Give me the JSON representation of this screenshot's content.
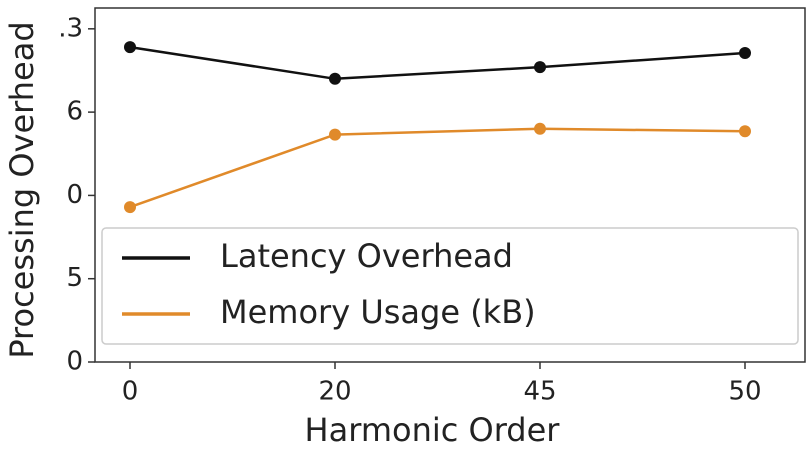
{
  "chart_data": {
    "type": "line",
    "xlabel": "Harmonic Order",
    "ylabel": "Processing Overhead",
    "categories": [
      "0",
      "20",
      "45",
      "50"
    ],
    "series": [
      {
        "name": "Latency Overhead",
        "color": "#111111",
        "values": [
          3.78,
          3.4,
          3.54,
          3.71
        ]
      },
      {
        "name": "Memory Usage (kB)",
        "color": "#e08a2a",
        "values": [
          1.86,
          2.73,
          2.8,
          2.77
        ]
      }
    ],
    "ylim": [
      0,
      4.25
    ],
    "yticks": [
      0,
      {
        "value": 1,
        "label": "5"
      },
      {
        "value": 2,
        "label": "0"
      },
      {
        "value": 3,
        "label": "6"
      },
      {
        "value": 4,
        "label": ".3"
      }
    ],
    "legend": "lower"
  }
}
